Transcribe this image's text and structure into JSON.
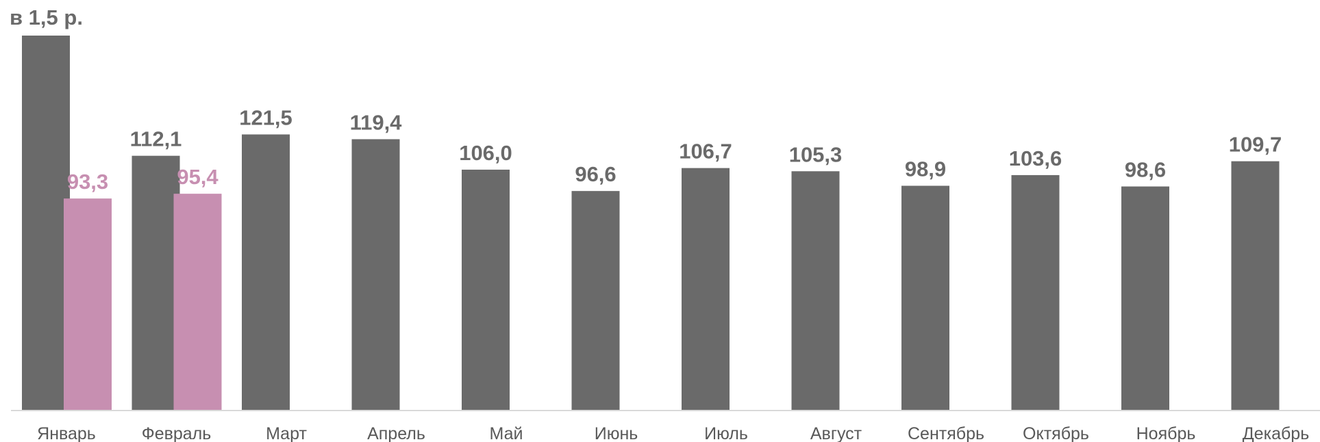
{
  "chart_data": {
    "type": "bar",
    "title": "",
    "xlabel": "",
    "ylabel": "",
    "categories": [
      "Январь",
      "Февраль",
      "Март",
      "Апрель",
      "Май",
      "Июнь",
      "Июль",
      "Август",
      "Сентябрь",
      "Октябрь",
      "Ноябрь",
      "Декабрь"
    ],
    "series": [
      {
        "color": "#6a6a6a",
        "values": [
          165.0,
          112.1,
          121.5,
          119.4,
          106.0,
          96.6,
          106.7,
          105.3,
          98.9,
          103.6,
          98.6,
          109.7
        ],
        "labels": [
          "в 1,5 р.",
          "112,1",
          "121,5",
          "119,4",
          "106,0",
          "96,6",
          "106,7",
          "105,3",
          "98,9",
          "103,6",
          "98,6",
          "109,7"
        ]
      },
      {
        "color": "#c78fb1",
        "values": [
          93.3,
          95.4,
          null,
          null,
          null,
          null,
          null,
          null,
          null,
          null,
          null,
          null
        ],
        "labels": [
          "93,3",
          "95,4",
          null,
          null,
          null,
          null,
          null,
          null,
          null,
          null,
          null,
          null
        ]
      }
    ],
    "ylim": [
      0,
      165
    ],
    "grid": false,
    "legend": "none"
  }
}
